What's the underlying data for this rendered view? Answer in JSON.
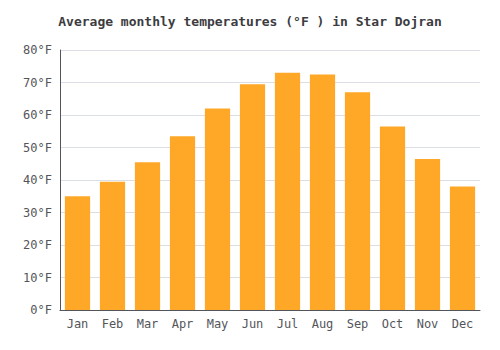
{
  "chart_data": {
    "type": "bar",
    "title": "Average monthly temperatures (°F ) in Star Dojran",
    "categories": [
      "Jan",
      "Feb",
      "Mar",
      "Apr",
      "May",
      "Jun",
      "Jul",
      "Aug",
      "Sep",
      "Oct",
      "Nov",
      "Dec"
    ],
    "values": [
      35,
      39.5,
      45.5,
      53.5,
      62,
      69.5,
      73,
      72.5,
      67,
      56.5,
      46.5,
      38
    ],
    "color": "#FFA726",
    "ylim": [
      0,
      80
    ],
    "yticks": [
      {
        "value": 0,
        "label": "0°F"
      },
      {
        "value": 10,
        "label": "10°F"
      },
      {
        "value": 20,
        "label": "20°F"
      },
      {
        "value": 30,
        "label": "30°F"
      },
      {
        "value": 40,
        "label": "40°F"
      },
      {
        "value": 50,
        "label": "50°F"
      },
      {
        "value": 60,
        "label": "60°F"
      },
      {
        "value": 70,
        "label": "70°F"
      },
      {
        "value": 80,
        "label": "80°F"
      }
    ],
    "grid": true
  }
}
